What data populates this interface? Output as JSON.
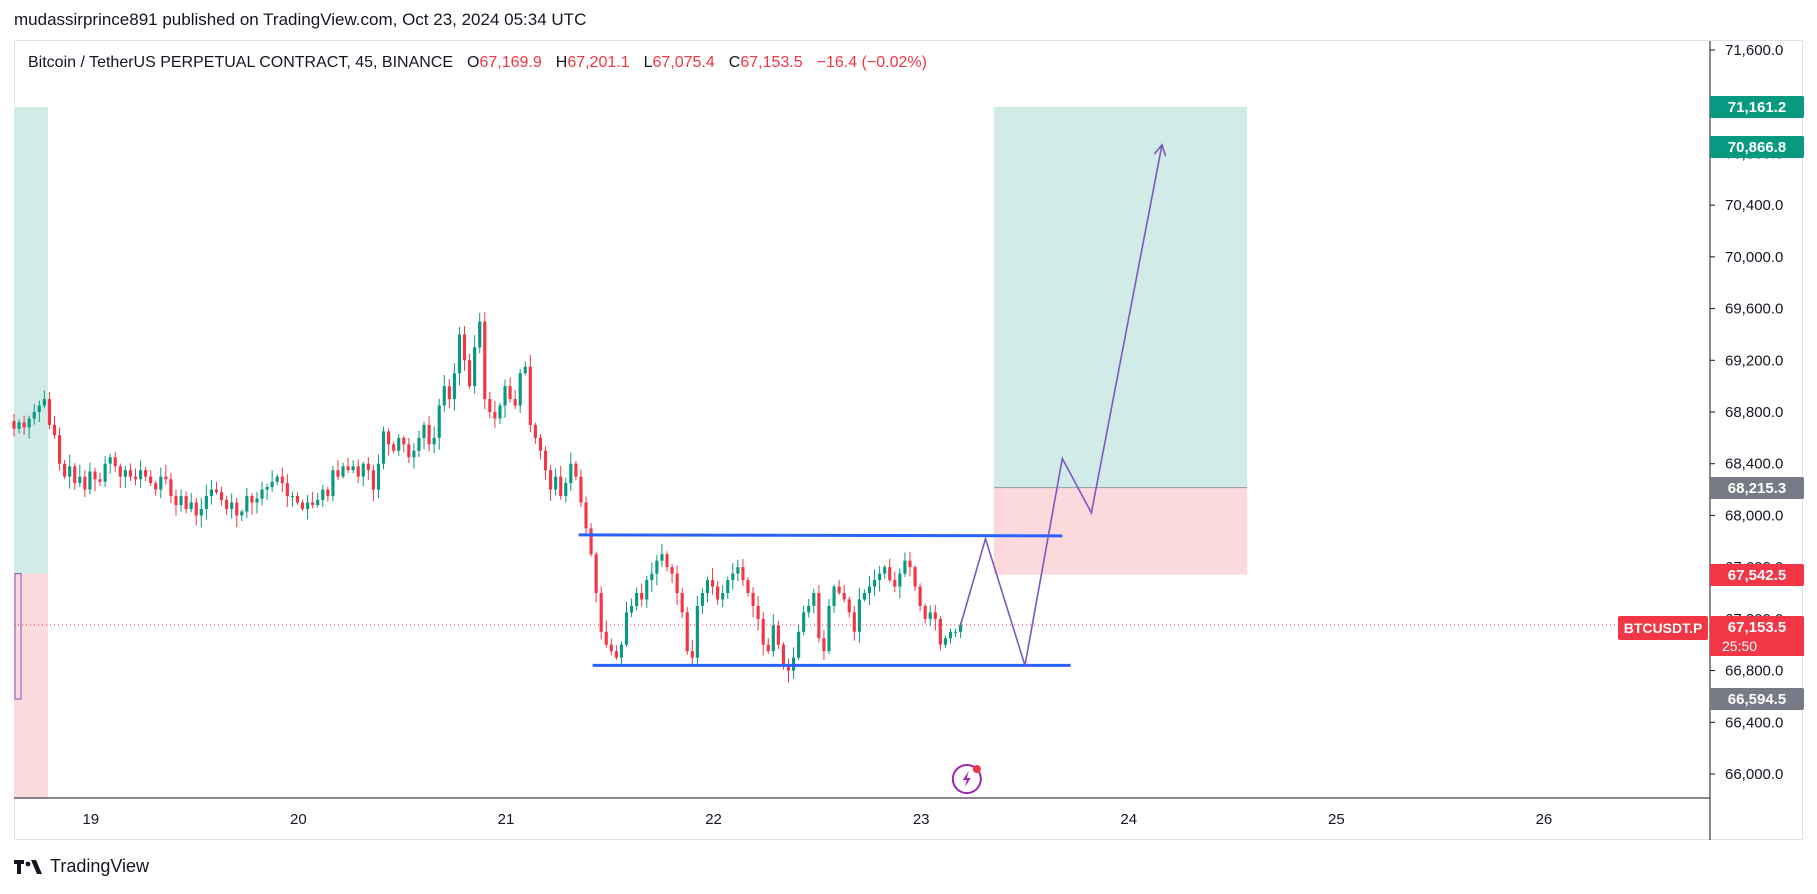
{
  "publisher_line": "mudassirprince891 published on TradingView.com, Oct 23, 2024 05:34 UTC",
  "header": {
    "symbol": "Bitcoin / TetherUS PERPETUAL CONTRACT, 45, BINANCE",
    "open_label": "O",
    "open": "67,169.9",
    "high_label": "H",
    "high": "67,201.1",
    "low_label": "L",
    "low": "67,075.4",
    "close_label": "C",
    "close": "67,153.5",
    "change": "−16.4 (−0.02%)"
  },
  "branding": {
    "name": "TradingView"
  },
  "badges": {
    "target": "71,161.2",
    "target_color": "#089981",
    "path_top": "70,866.8",
    "path_top_color": "#089981",
    "entry": "68,215.3",
    "entry_color": "#787b86",
    "stop": "67,542.5",
    "stop_color": "#f23645",
    "last": "67,153.5",
    "last_color": "#f23645",
    "low_line": "66,594.5",
    "low_line_color": "#787b86",
    "symbol_tag": "BTCUSDT.P",
    "countdown": "25:50"
  },
  "colors": {
    "up": "#089981",
    "down": "#f23645",
    "pattern_line": "#2962ff",
    "projection": "#7e57c2",
    "target_zone": "#d1ece6",
    "stop_zone": "#fbd9dd"
  },
  "chart_data": {
    "type": "candlestick",
    "symbol": "BTCUSDT.P",
    "interval": "45",
    "exchange": "BINANCE",
    "y_ticks": [
      66000,
      66400,
      66800,
      67200,
      67600,
      68000,
      68400,
      68800,
      69200,
      69600,
      70000,
      70400,
      70800,
      71200,
      71600
    ],
    "y_tick_labels": [
      "66,000.0",
      "66,400.0",
      "66,800.0",
      "67,200.0",
      "67,600.0",
      "68,000.0",
      "68,400.0",
      "68,800.0",
      "69,200.0",
      "69,600.0",
      "70,000.0",
      "70,400.0",
      "70,800.0",
      "71,200.0",
      "71,600.0"
    ],
    "x_ticks": [
      19,
      20,
      21,
      22,
      23,
      24,
      25,
      26
    ],
    "x_tick_labels": [
      "19",
      "20",
      "21",
      "22",
      "23",
      "24",
      "25",
      "26"
    ],
    "ylim": [
      65830,
      71700
    ],
    "xlim": [
      18.63,
      26.8
    ],
    "candles_xrange": [
      18.63,
      23.19
    ],
    "closes": [
      68670,
      68720,
      68680,
      68750,
      68800,
      68850,
      68900,
      68700,
      68620,
      68400,
      68300,
      68380,
      68250,
      68300,
      68200,
      68340,
      68280,
      68260,
      68400,
      68450,
      68380,
      68300,
      68350,
      68300,
      68280,
      68350,
      68300,
      68250,
      68200,
      68300,
      68280,
      68150,
      68080,
      68150,
      68050,
      68100,
      68000,
      68050,
      68150,
      68200,
      68180,
      68120,
      68050,
      68100,
      68000,
      68030,
      68150,
      68100,
      68130,
      68200,
      68220,
      68260,
      68300,
      68250,
      68150,
      68150,
      68100,
      68050,
      68100,
      68080,
      68120,
      68200,
      68150,
      68350,
      68300,
      68380,
      68350,
      68380,
      68300,
      68400,
      68350,
      68200,
      68400,
      68650,
      68550,
      68500,
      68600,
      68550,
      68450,
      68500,
      68600,
      68700,
      68550,
      68600,
      68850,
      69000,
      68900,
      69100,
      69400,
      69200,
      69000,
      69300,
      69500,
      68900,
      68800,
      68750,
      68850,
      69000,
      68900,
      68850,
      69100,
      69150,
      68700,
      68600,
      68500,
      68350,
      68200,
      68300,
      68150,
      68250,
      68400,
      68300,
      68100,
      67900,
      67700,
      67400,
      67100,
      67000,
      66950,
      66900,
      67000,
      67250,
      67300,
      67400,
      67350,
      67500,
      67550,
      67650,
      67700,
      67600,
      67550,
      67400,
      67250,
      66950,
      66900,
      67300,
      67400,
      67500,
      67450,
      67350,
      67400,
      67500,
      67550,
      67600,
      67500,
      67400,
      67300,
      67200,
      67000,
      66950,
      67150,
      67000,
      66850,
      66800,
      66900,
      67100,
      67250,
      67300,
      67400,
      67050,
      66950,
      67300,
      67450,
      67400,
      67350,
      67250,
      67100,
      67350,
      67400,
      67450,
      67500,
      67550,
      67600,
      67500,
      67450,
      67550,
      67650,
      67600,
      67450,
      67300,
      67200,
      67250,
      67200,
      67000,
      67050,
      67100,
      67100,
      67153.5
    ],
    "range_box": {
      "top": 67850,
      "bottom": 66840,
      "x_start": 21.35,
      "x_end_upper": 23.68,
      "x_end_lower": 23.72
    },
    "position": {
      "entry": 68215.3,
      "target": 71161.2,
      "stop": 67542.5,
      "x_start": 23.35,
      "x_end": 24.57
    },
    "projection_path": [
      [
        23.19,
        67153.5
      ],
      [
        23.31,
        67820
      ],
      [
        23.5,
        66840
      ],
      [
        23.68,
        68440
      ],
      [
        23.82,
        68020
      ],
      [
        24.16,
        70866.8
      ]
    ],
    "last_price": 67153.5,
    "low_line": 66594.5
  }
}
